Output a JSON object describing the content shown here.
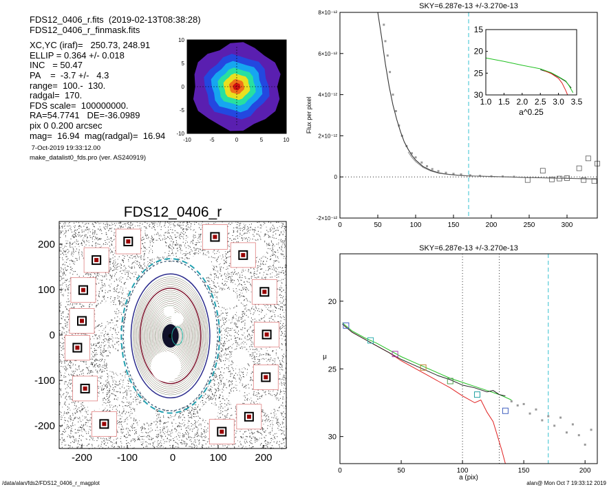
{
  "header": {
    "lines": [
      "FDS12_0406_r.fits  (2019-02-13T08:38:28)",
      "FDS12_0406_r_finmask.fits"
    ],
    "params": [
      "XC,YC (iraf)=   250.73, 248.91",
      "ELLIP = 0.364 +/- 0.018",
      "INC   = 50.47",
      "PA    =  -3.7 +/-   4.3",
      "range=  100.-  130.",
      "radgal=  170.",
      "FDS scale=  100000000.",
      "RA=54.7741   DE=-36.0989",
      "pix 0 0.200 arcsec",
      "mag=  16.94  mag(radgal)=  16.94"
    ],
    "date": " 7-Oct-2019 19:33:12.00",
    "program": "make_datalist0_fds.pro (ver. AS240919)"
  },
  "footer": {
    "path": "/data/alan/fds2/FDS12_0406_r_magplot",
    "user_time": "alan@  Mon Oct  7 19:33:12 2019"
  },
  "colors": {
    "sky_line": "#33c0d0",
    "green": "#20c020",
    "red": "#e02020",
    "data_gray": "#9a9a9a"
  },
  "chart_data": [
    {
      "id": "thumb",
      "type": "heatmap",
      "xlim": [
        -10,
        10
      ],
      "ylim": [
        -10,
        10
      ],
      "xticks": [
        "-10",
        "-5",
        "0",
        "5",
        "10"
      ],
      "yticks": [
        "10",
        "5",
        "0",
        "-5",
        "-10"
      ],
      "contour_radii": [
        9.3,
        6.9,
        5.4,
        4.0,
        2.8,
        1.6,
        0.8
      ],
      "contour_colors": [
        "#5a1fb0",
        "#2348e0",
        "#16a6f0",
        "#28e0a0",
        "#e8e020",
        "#f07018",
        "#d01010"
      ]
    },
    {
      "id": "image",
      "type": "scatter",
      "title": "FDS12_0406_r",
      "xlim": [
        -250,
        250
      ],
      "ylim": [
        -250,
        250
      ],
      "xticks": [
        "-200",
        "-100",
        "0",
        "100",
        "200"
      ],
      "yticks": [
        "200",
        "100",
        "0",
        "-100",
        "-200"
      ],
      "stars": [
        {
          "x": -200,
          "y": 31
        },
        {
          "x": -210,
          "y": -28
        },
        {
          "x": -197,
          "y": 99
        },
        {
          "x": -168,
          "y": 165
        },
        {
          "x": -98,
          "y": 206
        },
        {
          "x": 93,
          "y": 216
        },
        {
          "x": 155,
          "y": 176
        },
        {
          "x": 202,
          "y": 95
        },
        {
          "x": 207,
          "y": 1
        },
        {
          "x": 205,
          "y": -93
        },
        {
          "x": 168,
          "y": -180
        },
        {
          "x": 108,
          "y": -213
        },
        {
          "x": -151,
          "y": -196
        },
        {
          "x": -193,
          "y": -118
        }
      ],
      "ellipse_semimajor": [
        170,
        130,
        100,
        60,
        20
      ],
      "ellipse_colors": [
        "#20a0b0",
        "#2a2a8c",
        "#7a1028",
        "#c08030",
        "#20b0a0"
      ],
      "inc_ratio": 0.636
    },
    {
      "id": "flux",
      "type": "line",
      "title": "SKY=6.287e-13 +/-3.270e-13",
      "xlabel": "",
      "ylabel": "Flux per pixel",
      "xlim": [
        0,
        340
      ],
      "ylim": [
        -2e-12,
        8e-12
      ],
      "xticks": [
        0,
        50,
        100,
        150,
        200,
        250,
        300
      ],
      "yticks": [
        {
          "v": 8e-12,
          "label": "8×10⁻¹²"
        },
        {
          "v": 6e-12,
          "label": "6×10⁻¹²"
        },
        {
          "v": 4e-12,
          "label": "4×10⁻¹²"
        },
        {
          "v": 2e-12,
          "label": "2×10⁻¹²"
        },
        {
          "v": 0,
          "label": "0"
        },
        {
          "v": -2e-12,
          "label": "-2×10⁻¹²"
        }
      ],
      "sky_x": 170,
      "profile": {
        "x": [
          50,
          55,
          60,
          65,
          70,
          75,
          80,
          85,
          90,
          95,
          100,
          110,
          120,
          130,
          140,
          150,
          160,
          170,
          180,
          200,
          250,
          300,
          340
        ],
        "y": [
          8e-12,
          6.8e-12,
          5.5e-12,
          4.4e-12,
          3.5e-12,
          2.8e-12,
          2.2e-12,
          1.7e-12,
          1.35e-12,
          1.05e-12,
          8.2e-13,
          5e-13,
          3.2e-13,
          2e-13,
          1.4e-13,
          1e-13,
          7e-14,
          5e-14,
          4e-14,
          2e-14,
          -3e-14,
          -7e-14,
          -1e-13
        ]
      },
      "points_gray": {
        "x": [
          58,
          60,
          63,
          66,
          70,
          74,
          78,
          82,
          88,
          95,
          100,
          108,
          115,
          122,
          130,
          140,
          150,
          160,
          172,
          185,
          200,
          215,
          230
        ],
        "y": [
          7.4e-12,
          6.6e-12,
          5.9e-12,
          5.1e-12,
          4e-12,
          3.2e-12,
          2.5e-12,
          2e-12,
          1.5e-12,
          1.15e-12,
          9.5e-13,
          7e-13,
          5.2e-13,
          3.8e-13,
          2.8e-13,
          2e-13,
          1.5e-13,
          1.2e-13,
          8e-14,
          5e-14,
          3e-14,
          2e-14,
          1e-14
        ]
      },
      "points_square": {
        "x": [
          248,
          268,
          280,
          290,
          300,
          316,
          322,
          328,
          336,
          340
        ],
        "y": [
          -1.5e-13,
          3e-13,
          -1.2e-13,
          -8e-14,
          -6e-14,
          4.2e-13,
          -1.5e-13,
          9e-13,
          -2e-13,
          6.5e-13
        ]
      },
      "inset": {
        "xlabel": "a^0.25",
        "xlim": [
          1.0,
          3.5
        ],
        "ylim": [
          15,
          30
        ],
        "xticks": [
          "1.0",
          "1.5",
          "2.0",
          "2.5",
          "3.0",
          "3.5"
        ],
        "yticks": [
          "15",
          "20",
          "25",
          "30"
        ],
        "green": {
          "x": [
            1.0,
            1.5,
            2.0,
            2.5,
            2.8,
            3.0,
            3.2,
            3.3,
            3.4
          ],
          "y": [
            21.5,
            22.3,
            23.2,
            24.0,
            24.9,
            25.8,
            26.8,
            28.0,
            29.5
          ]
        },
        "red": {
          "x": [
            2.6,
            2.8,
            3.0,
            3.1,
            3.2,
            3.25
          ],
          "y": [
            24.4,
            25.1,
            26.2,
            27.3,
            29.0,
            30.0
          ]
        },
        "black": {
          "x": [
            2.5,
            2.8,
            3.0,
            3.2,
            3.35
          ],
          "y": [
            24.2,
            25.0,
            25.9,
            26.9,
            28.4
          ]
        }
      }
    },
    {
      "id": "mu",
      "type": "line",
      "title": "SKY=6.287e-13 +/-3.270e-13",
      "xlabel": "a (pix)",
      "ylabel": "μ",
      "xlim": [
        0,
        210
      ],
      "ylim": [
        32,
        16.5
      ],
      "xticks": [
        0,
        50,
        100,
        150,
        200
      ],
      "yticks": [
        20,
        25,
        30
      ],
      "vlines_dotted": [
        100,
        130
      ],
      "sky_x": 170,
      "black": {
        "x": [
          2,
          10,
          20,
          30,
          40,
          50,
          60,
          70,
          80,
          90,
          100,
          110,
          120,
          125,
          130,
          135
        ],
        "y": [
          21.7,
          22.3,
          22.8,
          23.3,
          23.8,
          24.3,
          24.7,
          25.1,
          25.5,
          25.8,
          26.2,
          26.4,
          26.7,
          26.6,
          26.9,
          27.0
        ]
      },
      "green": {
        "x": [
          2,
          10,
          20,
          30,
          40,
          50,
          60,
          70,
          80,
          90,
          100,
          110,
          120,
          130,
          140
        ],
        "y": [
          21.6,
          22.2,
          22.7,
          23.1,
          23.6,
          24.1,
          24.5,
          24.9,
          25.3,
          25.7,
          26.0,
          26.3,
          26.6,
          26.9,
          27.3
        ]
      },
      "red": {
        "x": [
          2,
          10,
          20,
          30,
          40,
          50,
          60,
          70,
          80,
          90,
          100,
          110,
          115,
          120,
          125,
          128,
          132,
          135
        ],
        "y": [
          21.7,
          22.3,
          22.8,
          23.3,
          23.8,
          24.4,
          24.9,
          25.4,
          25.9,
          26.4,
          27.0,
          27.5,
          27.3,
          28.2,
          28.9,
          29.8,
          31.0,
          32.0
        ]
      },
      "points_gray": {
        "x": [
          140,
          145,
          150,
          155,
          160,
          165,
          170,
          175,
          180,
          185,
          190,
          195,
          200,
          205
        ],
        "y": [
          27.4,
          27.7,
          27.6,
          28.3,
          28.0,
          28.8,
          28.5,
          29.2,
          28.6,
          29.7,
          29.1,
          29.9,
          30.6,
          29.5
        ]
      },
      "points_square": {
        "x": [
          5,
          25,
          45,
          68,
          90,
          112,
          135
        ],
        "y": [
          21.8,
          22.9,
          23.9,
          24.9,
          25.9,
          26.9,
          28.1
        ]
      },
      "square_colors": [
        "#4060c0",
        "#30b0b0",
        "#b040b0",
        "#c08030",
        "#50a050",
        "#20a0a0",
        "#4060c0"
      ]
    }
  ]
}
